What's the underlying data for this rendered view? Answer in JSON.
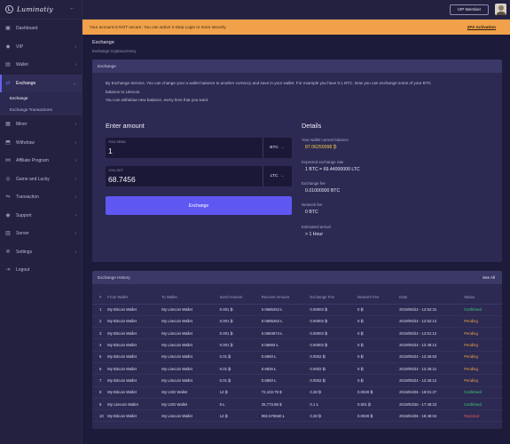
{
  "brand": {
    "name": "Luminatiy",
    "logo_letter": "L"
  },
  "topbar": {
    "vip_label": "VIP Member"
  },
  "alert": {
    "message": "Your account is NOT secure. You can active 2-Step Login to more security",
    "link": "2FA Activation"
  },
  "sidebar": {
    "items": [
      {
        "label": "Dashboard",
        "icon": "dashboard-icon",
        "glyph": "▣",
        "chevron": false
      },
      {
        "label": "VIP",
        "icon": "gem-icon",
        "glyph": "◆",
        "chevron": true
      },
      {
        "label": "Wallet",
        "icon": "wallet-icon",
        "glyph": "▤",
        "chevron": true
      },
      {
        "label": "Exchange",
        "icon": "exchange-icon",
        "glyph": "⇄",
        "chevron": true,
        "active": true
      },
      {
        "label": "Miner",
        "icon": "miner-icon",
        "glyph": "▦",
        "chevron": true
      },
      {
        "label": "Withdraw",
        "icon": "withdraw-icon",
        "glyph": "⬒",
        "chevron": true
      },
      {
        "label": "Affiliate Program",
        "icon": "affiliate-icon",
        "glyph": "⋈",
        "chevron": true
      },
      {
        "label": "Game and Lucky",
        "icon": "gamepad-icon",
        "glyph": "◎",
        "chevron": true
      },
      {
        "label": "Transaction",
        "icon": "transaction-icon",
        "glyph": "⇋",
        "chevron": true
      },
      {
        "label": "Support",
        "icon": "support-icon",
        "glyph": "◉",
        "chevron": true
      },
      {
        "label": "Server",
        "icon": "server-icon",
        "glyph": "▥",
        "chevron": true
      },
      {
        "label": "Settings",
        "icon": "gear-icon",
        "glyph": "✲",
        "chevron": true
      },
      {
        "label": "Logout",
        "icon": "logout-icon",
        "glyph": "⇥",
        "chevron": false
      }
    ],
    "exchange_sub": [
      "Exchange",
      "Exchange Transactions"
    ]
  },
  "page": {
    "title": "Exchange",
    "subtitle": "Exchange Cryptocurrency"
  },
  "exchange_card": {
    "header": "Exchange",
    "description_1": "By Exchange Service, You can change your a wallet balance to another currency and save in your wallet. For example you have 0.1 BTC. Now you can exchange some of your BTC",
    "description_2": "balance to Litecoin.",
    "description_3": "You can withdraw new balance, every time that you want.",
    "enter_title": "Enter amount",
    "send": {
      "label": "YOU SEND",
      "value": "1",
      "currency": "BTC"
    },
    "get": {
      "label": "YOU GET",
      "value": "68.7456",
      "currency": "LTC"
    },
    "button": "Exchange",
    "details_title": "Details",
    "details": {
      "balance_label": "Your wallet current balance",
      "balance_value": "87.06250098 ₿",
      "rate_label": "Expected exchange rate",
      "rate_value": "1 BTC = 69.44000000 LTC",
      "fee_label": "Exchange fee",
      "fee_value": "0.01000000 BTC",
      "network_label": "Network fee",
      "network_value": "0 BTC",
      "arrival_label": "Estimated arrival",
      "arrival_value": "> 1 Hour"
    }
  },
  "history": {
    "header": "Exchange History",
    "see_all": "See All",
    "columns": [
      "#",
      "From Wallet",
      "To Wallet",
      "Send Amount",
      "Receive Amount",
      "Exchange Fee",
      "Network Fee",
      "Date",
      "Status"
    ],
    "rows": [
      [
        "1",
        "My Bitcoin Wallet",
        "My Litecoin Wallet",
        "0.001 ₿",
        "0.0685262 Ł",
        "0.00002 ₿",
        "0 ₿",
        "2019/05/24 - 12:52:31",
        "Confirmed"
      ],
      [
        "2",
        "My Bitcoin Wallet",
        "My Litecoin Wallet",
        "0.001 ₿",
        "0.0685262 Ł",
        "0.00002 ₿",
        "0 ₿",
        "2019/05/24 - 12:52:12",
        "Pending"
      ],
      [
        "3",
        "My Bitcoin Wallet",
        "My Litecoin Wallet",
        "0.001 ₿",
        "0.0684874 Ł",
        "0.00002 ₿",
        "0 ₿",
        "2019/05/24 - 12:51:12",
        "Pending"
      ],
      [
        "4",
        "My Bitcoin Wallet",
        "My Litecoin Wallet",
        "0.001 ₿",
        "0.06893 Ł",
        "0.00002 ₿",
        "0 ₿",
        "2019/05/24 - 12:48:12",
        "Pending"
      ],
      [
        "5",
        "My Bitcoin Wallet",
        "My Litecoin Wallet",
        "0.01 ₿",
        "0.6893 Ł",
        "0.0002 ₿",
        "0 ₿",
        "2019/05/24 - 12:46:53",
        "Pending"
      ],
      [
        "6",
        "My Bitcoin Wallet",
        "My Litecoin Wallet",
        "0.01 ₿",
        "0.6826 Ł",
        "0.0002 ₿",
        "0 ₿",
        "2019/05/24 - 12:46:21",
        "Pending"
      ],
      [
        "7",
        "My Bitcoin Wallet",
        "My Litecoin Wallet",
        "0.01 ₿",
        "0.6893 Ł",
        "0.0002 ₿",
        "0 ₿",
        "2019/05/24 - 12:46:12",
        "Pending"
      ],
      [
        "8",
        "My Bitcoin Wallet",
        "My USD Wallet",
        "14 ₿",
        "72,103.79 $",
        "0.28 ₿",
        "0.0028 ₿",
        "2019/04/26 - 18:01:27",
        "Confirmed"
      ],
      [
        "9",
        "My Litecoin Wallet",
        "My USD Wallet",
        "5 Ł",
        "25,773.88 $",
        "0.1 Ł",
        "0.001 ₿",
        "2019/04/26 - 17:48:23",
        "Confirmed"
      ],
      [
        "10",
        "My Bitcoin Wallet",
        "My Litecoin Wallet",
        "14 ₿",
        "992.576560 Ł",
        "0.28 ₿",
        "0.0028 ₿",
        "2019/04/26 - 18:48:04",
        "Rejected"
      ]
    ]
  },
  "colors": {
    "accent": "#5f57f2",
    "warning": "#f0a14a",
    "confirmed": "#3fcf7a",
    "pending": "#f0a14a",
    "rejected": "#ee5a5a",
    "balance": "#f2c94c"
  }
}
